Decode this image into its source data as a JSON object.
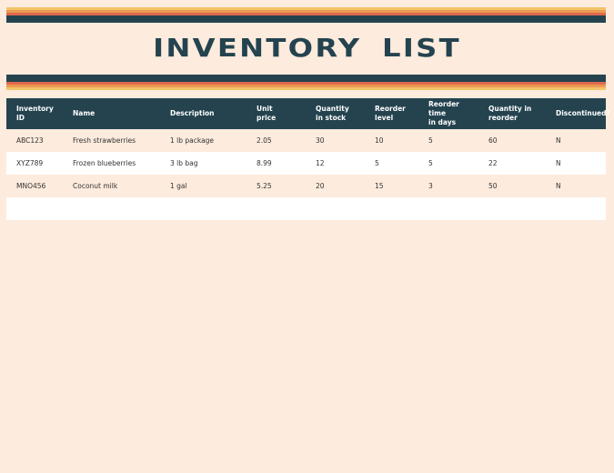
{
  "header": {
    "title": "INVENTORY LIST"
  },
  "table": {
    "columns": [
      "Inventory ID",
      "Name",
      "Description",
      "Unit\nprice",
      "Quantity\nin stock",
      "Reorder\nlevel",
      "Reorder time\nin days",
      "Quantity in reorder",
      "Discontinued?"
    ],
    "rows": [
      [
        "ABC123",
        "Fresh strawberries",
        "1 lb package",
        "2.05",
        "30",
        "10",
        "5",
        "60",
        "N"
      ],
      [
        "XYZ789",
        "Frozen blueberries",
        "3 lb bag",
        "8.99",
        "12",
        "5",
        "5",
        "22",
        "N"
      ],
      [
        "MNO456",
        "Coconut milk",
        "1 gal",
        "5.25",
        "20",
        "15",
        "3",
        "50",
        "N"
      ]
    ]
  }
}
